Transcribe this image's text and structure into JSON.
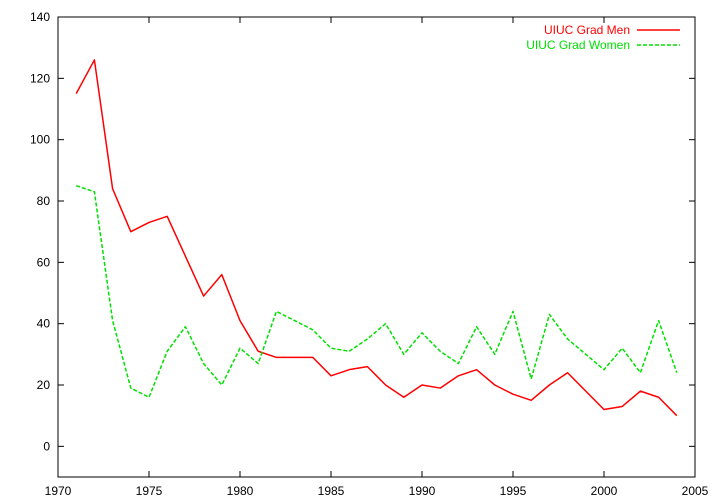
{
  "chart_data": {
    "type": "line",
    "title": "",
    "xlabel": "",
    "ylabel": "",
    "xlim": [
      1970,
      2005
    ],
    "ylim": [
      -10,
      140
    ],
    "x_ticks": [
      1970,
      1975,
      1980,
      1985,
      1990,
      1995,
      2000,
      2005
    ],
    "y_ticks": [
      0,
      20,
      40,
      60,
      80,
      100,
      120,
      140
    ],
    "grid": false,
    "legend_position": "top-right",
    "x": [
      1971,
      1972,
      1973,
      1974,
      1975,
      1976,
      1977,
      1978,
      1979,
      1980,
      1981,
      1982,
      1983,
      1984,
      1985,
      1986,
      1987,
      1988,
      1989,
      1990,
      1991,
      1992,
      1993,
      1994,
      1995,
      1996,
      1997,
      1998,
      1999,
      2000,
      2001,
      2002,
      2003,
      2004
    ],
    "series": [
      {
        "name": "UIUC Grad Men",
        "color": "#ff0000",
        "dash": "solid",
        "values": [
          115,
          126,
          84,
          70,
          73,
          75,
          62,
          49,
          56,
          41,
          31,
          29,
          29,
          29,
          23,
          25,
          26,
          20,
          16,
          20,
          19,
          23,
          25,
          20,
          17,
          15,
          20,
          24,
          18,
          12,
          13,
          18,
          16,
          10
        ]
      },
      {
        "name": "UIUC Grad Women",
        "color": "#00e000",
        "dash": "dashed",
        "values": [
          85,
          83,
          41,
          19,
          16,
          31,
          39,
          27,
          20,
          32,
          27,
          44,
          41,
          38,
          32,
          31,
          35,
          40,
          30,
          37,
          31,
          27,
          39,
          30,
          44,
          22,
          43,
          35,
          30,
          25,
          32,
          24,
          41,
          24
        ]
      }
    ]
  }
}
